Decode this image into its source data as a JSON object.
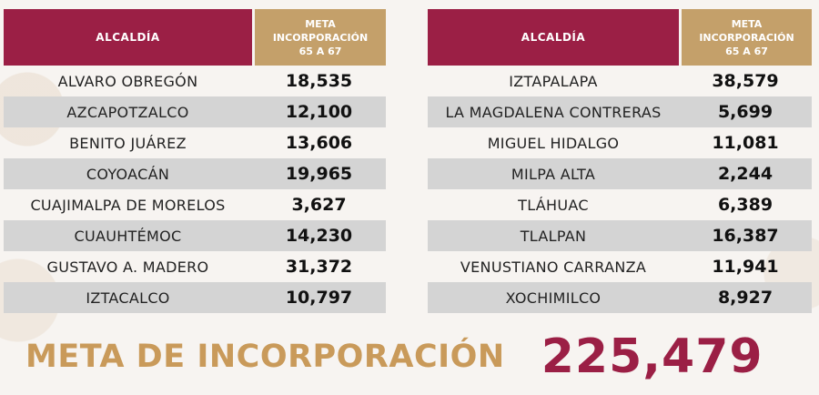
{
  "left_table": {
    "header_col1": "ALCALDÍA",
    "header_col2_line1": "META",
    "header_col2_line2": "INCORPORACIÓN",
    "header_col2_line3": "65 A 67",
    "rows": [
      {
        "name": "ALVARO OBREGÓN",
        "value": "18,535"
      },
      {
        "name": "AZCAPOTZALCO",
        "value": "12,100"
      },
      {
        "name": "BENITO JUÁREZ",
        "value": "13,606"
      },
      {
        "name": "COYOACÁN",
        "value": "19,965"
      },
      {
        "name": "CUAJIMALPA DE MORELOS",
        "value": "3,627"
      },
      {
        "name": "CUAUHTÉMOC",
        "value": "14,230"
      },
      {
        "name": "GUSTAVO A. MADERO",
        "value": "31,372"
      },
      {
        "name": "IZTACALCO",
        "value": "10,797"
      }
    ]
  },
  "right_table": {
    "header_col1": "ALCALDÍA",
    "header_col2_line1": "META",
    "header_col2_line2": "INCORPORACIÓN",
    "header_col2_line3": "65 A 67",
    "rows": [
      {
        "name": "IZTAPALAPA",
        "value": "38,579"
      },
      {
        "name": "LA MAGDALENA CONTRERAS",
        "value": "5,699"
      },
      {
        "name": "MIGUEL HIDALGO",
        "value": "11,081"
      },
      {
        "name": "MILPA ALTA",
        "value": "2,244"
      },
      {
        "name": "TLÁHUAC",
        "value": "6,389"
      },
      {
        "name": "TLALPAN",
        "value": "16,387"
      },
      {
        "name": "VENUSTIANO CARRANZA",
        "value": "11,941"
      },
      {
        "name": "XOCHIMILCO",
        "value": "8,927"
      }
    ]
  },
  "total": {
    "label": "META DE INCORPORACIÓN",
    "value": "225,479"
  },
  "colors": {
    "header_primary": "#9b1f45",
    "header_secondary": "#c4a06a",
    "total_label": "#c99a5a",
    "total_value": "#9b1f45",
    "row_shade": "#d4d4d4"
  }
}
